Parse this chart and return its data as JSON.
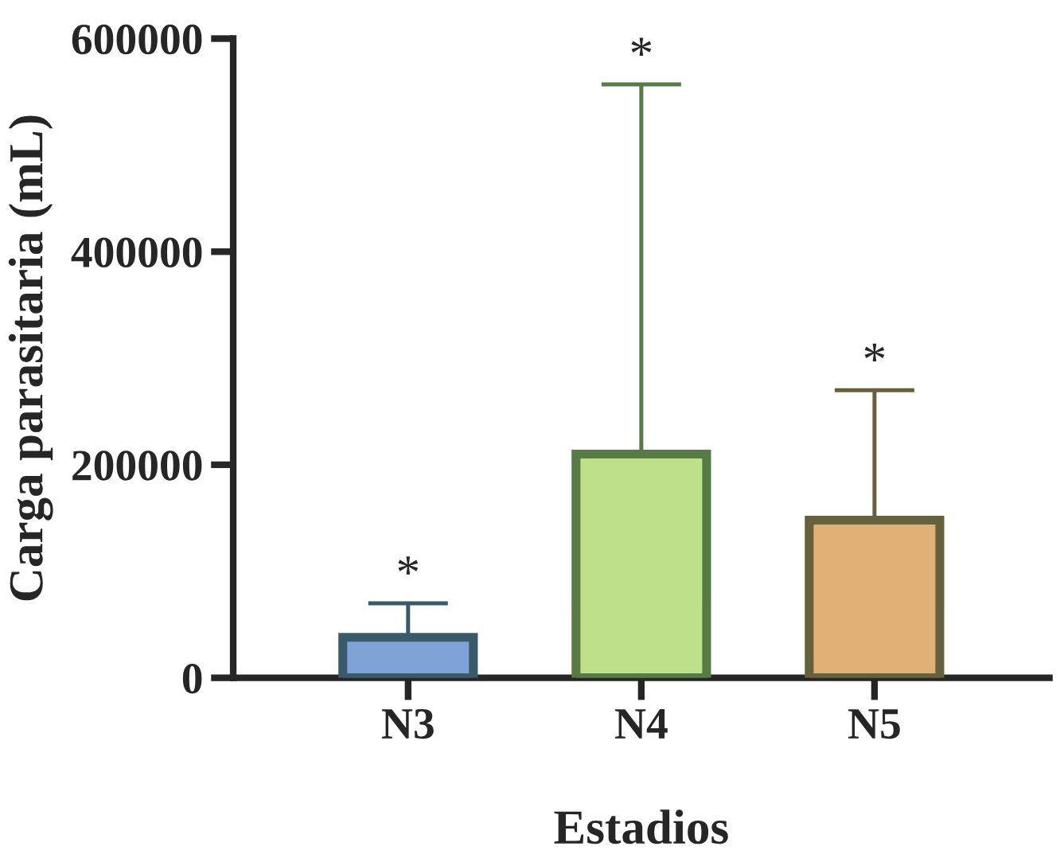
{
  "chart_data": {
    "type": "bar",
    "categories": [
      "N3",
      "N4",
      "N5"
    ],
    "values": [
      38000,
      210000,
      148000
    ],
    "errors": [
      [
        38000,
        70000
      ],
      [
        210000,
        557000
      ],
      [
        148000,
        270000
      ]
    ],
    "colors": [
      "#7fa3d6",
      "#bfe08a",
      "#e0b077"
    ],
    "xlabel": "Estadios",
    "ylabel": "Carga parasitaria (mL)",
    "ylim": [
      0,
      600000
    ],
    "yticks": [
      0,
      200000,
      400000,
      600000
    ],
    "annotations": [
      {
        "text": "*",
        "x": "N3",
        "y": 70000
      },
      {
        "text": "*",
        "x": "N4",
        "y": 557000
      },
      {
        "text": "*",
        "x": "N5",
        "y": 270000
      }
    ],
    "grid": false,
    "legend": false
  }
}
